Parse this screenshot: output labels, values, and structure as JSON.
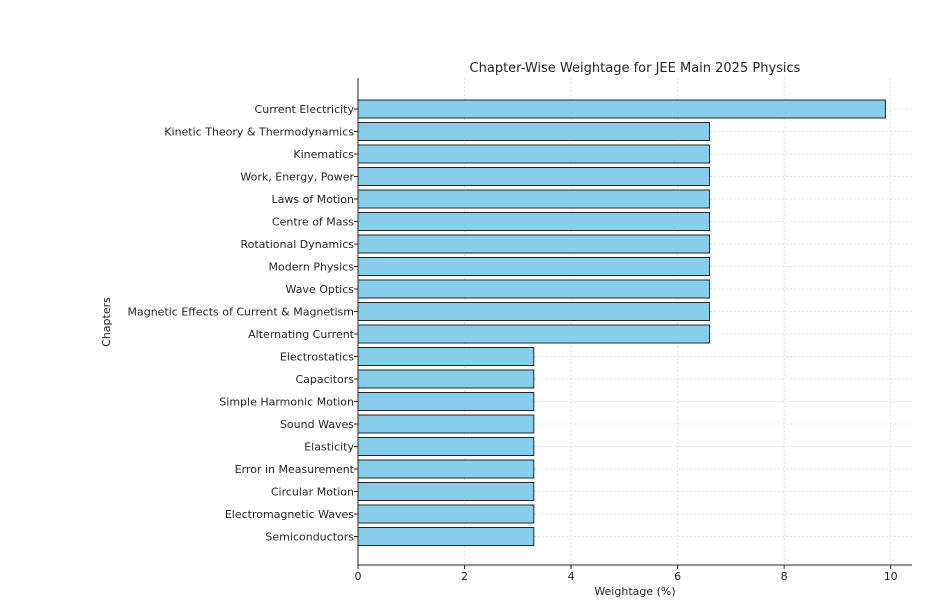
{
  "chart_data": {
    "type": "bar",
    "orientation": "horizontal",
    "title": "Chapter-Wise Weightage for JEE Main 2025 Physics",
    "xlabel": "Weightage (%)",
    "ylabel": "Chapters",
    "xlim": [
      0,
      10.4
    ],
    "x_ticks": [
      0,
      2,
      4,
      6,
      8,
      10
    ],
    "grid": true,
    "bar_color": "#87ceeb",
    "edge_color": "#262626",
    "categories": [
      "Current Electricity",
      "Kinetic Theory & Thermodynamics",
      "Kinematics",
      "Work, Energy, Power",
      "Laws of Motion",
      "Centre of Mass",
      "Rotational Dynamics",
      "Modern Physics",
      "Wave Optics",
      "Magnetic Effects of Current & Magnetism",
      "Alternating Current",
      "Electrostatics",
      "Capacitors",
      "Simple Harmonic Motion",
      "Sound Waves",
      "Elasticity",
      "Error in Measurement",
      "Circular Motion",
      "Electromagnetic Waves",
      "Semiconductors"
    ],
    "values": [
      9.9,
      6.6,
      6.6,
      6.6,
      6.6,
      6.6,
      6.6,
      6.6,
      6.6,
      6.6,
      6.6,
      3.3,
      3.3,
      3.3,
      3.3,
      3.3,
      3.3,
      3.3,
      3.3,
      3.3
    ]
  }
}
